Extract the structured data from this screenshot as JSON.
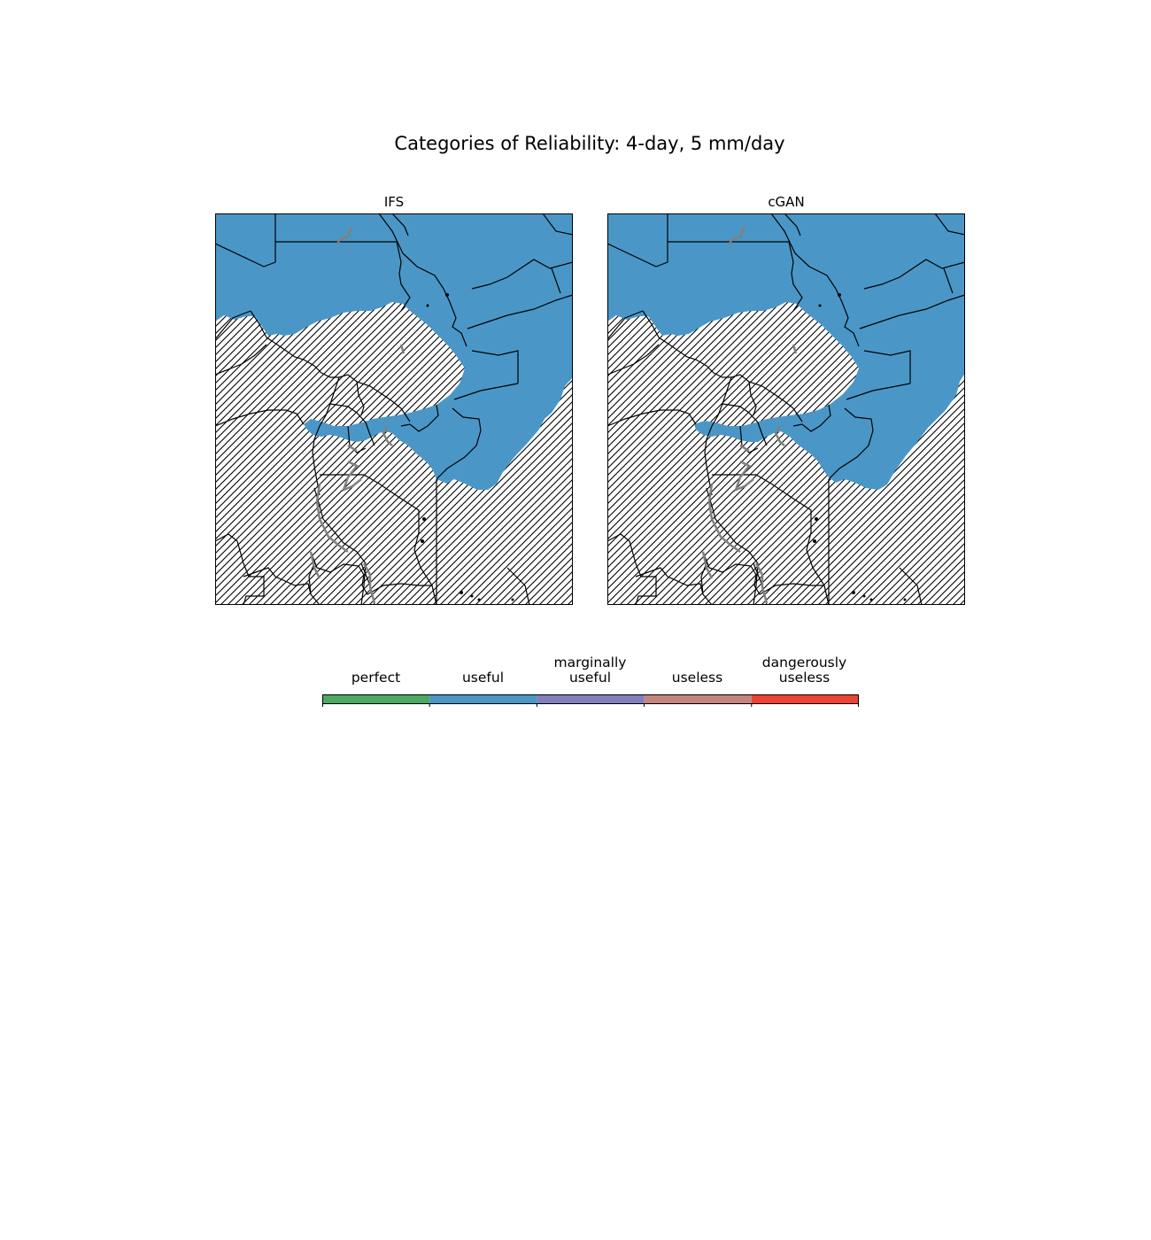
{
  "figure": {
    "title": "Categories of Reliability: 4-day, 5 mm/day"
  },
  "panels": [
    {
      "title": "IFS"
    },
    {
      "title": "cGAN"
    }
  ],
  "colorbar": {
    "categories": [
      {
        "line1": "",
        "line2": "perfect",
        "color": "#4aaa63"
      },
      {
        "line1": "",
        "line2": "useful",
        "color": "#4a97c7"
      },
      {
        "line1": "marginally",
        "line2": "useful",
        "color": "#8180ba"
      },
      {
        "line1": "",
        "line2": "useless",
        "color": "#c4857f"
      },
      {
        "line1": "dangerously",
        "line2": "useless",
        "color": "#ec4434"
      }
    ]
  },
  "legend_colors": {
    "useful_region": "#4a97c7",
    "hatch_region": "#000000",
    "borders": "#000000",
    "lakes_rivers": "#808080"
  }
}
